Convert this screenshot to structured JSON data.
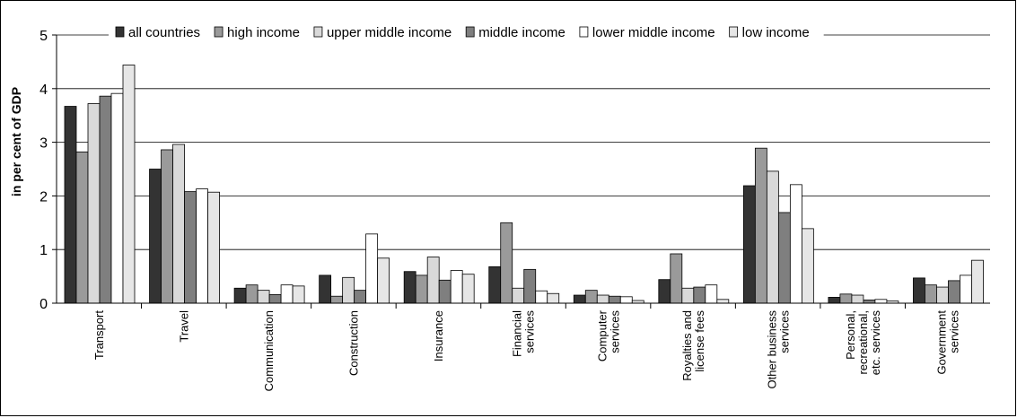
{
  "chart_data": {
    "type": "bar",
    "title": "",
    "xlabel": "",
    "ylabel": "in per cent of GDP",
    "ylim": [
      0,
      5
    ],
    "yticks": [
      "0",
      "1",
      "2",
      "3",
      "4",
      "5"
    ],
    "grid": true,
    "legend_position": "top",
    "categories": [
      "Transport",
      "Travel",
      "Communication",
      "Construction",
      "Insurance",
      "Financial\nservices",
      "Computer\nservices",
      "Royalties and\nlicense fees",
      "Other business\nservices",
      "Personal,\nrecreational,\netc. services",
      "Government\nservices"
    ],
    "series": [
      {
        "name": "all countries",
        "color": "#333333",
        "values": [
          3.67,
          2.5,
          0.28,
          0.52,
          0.59,
          0.68,
          0.15,
          0.44,
          2.19,
          0.11,
          0.47
        ]
      },
      {
        "name": "high income",
        "color": "#9a9a9a",
        "values": [
          2.82,
          2.86,
          0.34,
          0.13,
          0.52,
          1.5,
          0.24,
          0.92,
          2.89,
          0.17,
          0.34
        ]
      },
      {
        "name": "upper middle income",
        "color": "#d9d9d9",
        "values": [
          3.72,
          2.96,
          0.24,
          0.48,
          0.86,
          0.28,
          0.15,
          0.28,
          2.46,
          0.15,
          0.3
        ]
      },
      {
        "name": "middle income",
        "color": "#7f7f7f",
        "values": [
          3.86,
          2.08,
          0.16,
          0.24,
          0.43,
          0.63,
          0.13,
          0.3,
          1.69,
          0.06,
          0.42
        ]
      },
      {
        "name": "lower middle income",
        "color": "#ffffff",
        "values": [
          3.91,
          2.13,
          0.34,
          1.29,
          0.61,
          0.23,
          0.12,
          0.34,
          2.21,
          0.07,
          0.52
        ]
      },
      {
        "name": "low income",
        "color": "#e6e6e6",
        "values": [
          4.44,
          2.07,
          0.32,
          0.84,
          0.54,
          0.18,
          0.05,
          0.07,
          1.39,
          0.04,
          0.8
        ]
      }
    ]
  }
}
